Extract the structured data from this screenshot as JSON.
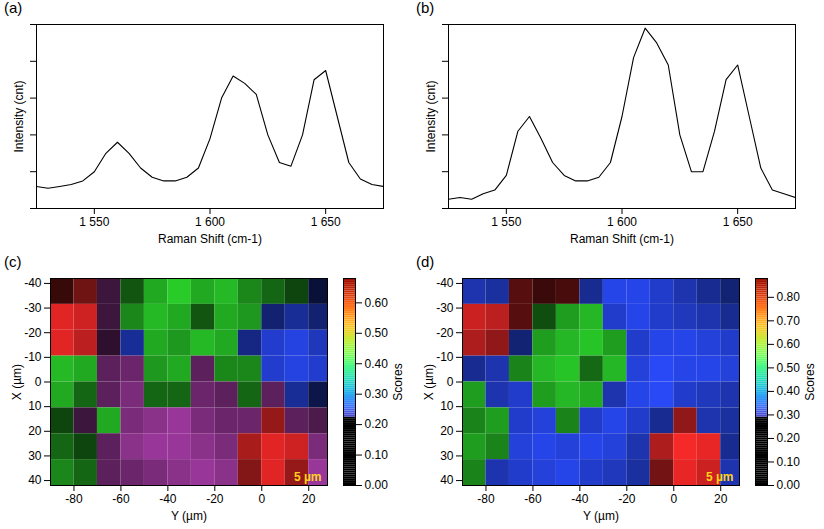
{
  "chart_data": [
    {
      "type": "line",
      "panel": "(a)",
      "x_label": "Raman Shift (cm-1)",
      "y_label": "Intensity (cnt)",
      "xlim": [
        1525,
        1675
      ],
      "xticks": [
        {
          "value": 1550,
          "label": "1 550"
        },
        {
          "value": 1600,
          "label": "1 600"
        },
        {
          "value": 1650,
          "label": "1 650"
        }
      ],
      "ylim": [
        0,
        1
      ],
      "yticks": [
        0,
        0.2,
        0.4,
        0.6,
        0.8,
        1
      ],
      "tick_labels": "x",
      "color": "#000000",
      "x": [
        1525,
        1530,
        1535,
        1540,
        1545,
        1550,
        1555,
        1560,
        1565,
        1570,
        1575,
        1580,
        1585,
        1590,
        1595,
        1600,
        1605,
        1610,
        1615,
        1620,
        1625,
        1630,
        1635,
        1640,
        1645,
        1650,
        1655,
        1660,
        1665,
        1670,
        1675
      ],
      "values": [
        0.12,
        0.11,
        0.12,
        0.13,
        0.15,
        0.2,
        0.3,
        0.36,
        0.3,
        0.22,
        0.17,
        0.15,
        0.15,
        0.17,
        0.22,
        0.38,
        0.6,
        0.72,
        0.68,
        0.62,
        0.4,
        0.25,
        0.23,
        0.4,
        0.7,
        0.75,
        0.5,
        0.25,
        0.16,
        0.13,
        0.12
      ]
    },
    {
      "type": "line",
      "panel": "(b)",
      "x_label": "Raman Shift (cm-1)",
      "y_label": "Intensity (cnt)",
      "xlim": [
        1525,
        1675
      ],
      "xticks": [
        {
          "value": 1550,
          "label": "1 550"
        },
        {
          "value": 1600,
          "label": "1 600"
        },
        {
          "value": 1650,
          "label": "1 650"
        }
      ],
      "ylim": [
        0,
        1
      ],
      "yticks": [
        0,
        0.2,
        0.4,
        0.6,
        0.8,
        1
      ],
      "tick_labels": "x",
      "color": "#000000",
      "x": [
        1525,
        1530,
        1535,
        1540,
        1545,
        1550,
        1555,
        1560,
        1565,
        1570,
        1575,
        1580,
        1585,
        1590,
        1595,
        1600,
        1605,
        1610,
        1615,
        1620,
        1625,
        1630,
        1635,
        1640,
        1645,
        1650,
        1655,
        1660,
        1665,
        1670,
        1675
      ],
      "values": [
        0.05,
        0.06,
        0.05,
        0.08,
        0.1,
        0.18,
        0.42,
        0.5,
        0.38,
        0.25,
        0.18,
        0.15,
        0.15,
        0.17,
        0.25,
        0.5,
        0.82,
        0.98,
        0.9,
        0.78,
        0.4,
        0.2,
        0.2,
        0.42,
        0.7,
        0.78,
        0.5,
        0.22,
        0.1,
        0.08,
        0.06
      ]
    },
    {
      "type": "heatmap",
      "panel": "(c)",
      "x_label": "Y (µm)",
      "y_label": "X (µm)",
      "colorbar_label": "Scores",
      "scale_bar": "5 µm",
      "xlim": [
        -90,
        28
      ],
      "xticks": [
        -80,
        -60,
        -40,
        -20,
        0,
        20
      ],
      "ylim": [
        -42,
        42
      ],
      "yticks": [
        -40,
        -30,
        -20,
        -10,
        0,
        10,
        20,
        30,
        40
      ],
      "colors": [
        "#ff2a2a",
        "#2ee62e",
        "#2a4cff",
        "#d04ad0"
      ],
      "x_centers": [
        -85,
        -75,
        -65,
        -55,
        -45,
        -35,
        -25,
        -15,
        -5,
        5,
        15,
        25
      ],
      "y_centers": [
        -36.75,
        -26.25,
        -15.75,
        -5.25,
        5.25,
        15.75,
        26.25,
        36.75
      ],
      "cell_width": 10,
      "cell_height": 10.5,
      "cells": [
        [
          [
            0,
            0.15
          ],
          [
            0,
            0.3
          ],
          [
            3,
            0.2
          ],
          [
            1,
            0.25
          ],
          [
            1,
            0.5
          ],
          [
            1,
            0.6
          ],
          [
            1,
            0.5
          ],
          [
            1,
            0.55
          ],
          [
            1,
            0.4
          ],
          [
            1,
            0.3
          ],
          [
            1,
            0.2
          ],
          [
            2,
            0.15
          ]
        ],
        [
          [
            0,
            0.6
          ],
          [
            0,
            0.55
          ],
          [
            3,
            0.2
          ],
          [
            1,
            0.4
          ],
          [
            1,
            0.55
          ],
          [
            1,
            0.5
          ],
          [
            1,
            0.25
          ],
          [
            1,
            0.5
          ],
          [
            1,
            0.45
          ],
          [
            2,
            0.3
          ],
          [
            2,
            0.4
          ],
          [
            2,
            0.3
          ]
        ],
        [
          [
            0,
            0.6
          ],
          [
            0,
            0.5
          ],
          [
            3,
            0.15
          ],
          [
            2,
            0.4
          ],
          [
            1,
            0.5
          ],
          [
            1,
            0.45
          ],
          [
            1,
            0.55
          ],
          [
            1,
            0.5
          ],
          [
            2,
            0.35
          ],
          [
            2,
            0.55
          ],
          [
            2,
            0.6
          ],
          [
            2,
            0.5
          ]
        ],
        [
          [
            1,
            0.55
          ],
          [
            1,
            0.5
          ],
          [
            3,
            0.3
          ],
          [
            3,
            0.35
          ],
          [
            1,
            0.45
          ],
          [
            1,
            0.5
          ],
          [
            3,
            0.3
          ],
          [
            1,
            0.4
          ],
          [
            1,
            0.4
          ],
          [
            2,
            0.55
          ],
          [
            2,
            0.6
          ],
          [
            2,
            0.55
          ]
        ],
        [
          [
            1,
            0.5
          ],
          [
            1,
            0.3
          ],
          [
            3,
            0.3
          ],
          [
            3,
            0.4
          ],
          [
            1,
            0.3
          ],
          [
            1,
            0.3
          ],
          [
            3,
            0.35
          ],
          [
            3,
            0.3
          ],
          [
            1,
            0.3
          ],
          [
            3,
            0.3
          ],
          [
            2,
            0.4
          ],
          [
            2,
            0.2
          ]
        ],
        [
          [
            1,
            0.2
          ],
          [
            3,
            0.2
          ],
          [
            1,
            0.5
          ],
          [
            3,
            0.4
          ],
          [
            3,
            0.45
          ],
          [
            3,
            0.5
          ],
          [
            3,
            0.4
          ],
          [
            3,
            0.35
          ],
          [
            3,
            0.35
          ],
          [
            0,
            0.4
          ],
          [
            3,
            0.3
          ],
          [
            3,
            0.25
          ]
        ],
        [
          [
            1,
            0.3
          ],
          [
            1,
            0.2
          ],
          [
            3,
            0.3
          ],
          [
            3,
            0.45
          ],
          [
            3,
            0.5
          ],
          [
            3,
            0.5
          ],
          [
            3,
            0.45
          ],
          [
            3,
            0.4
          ],
          [
            0,
            0.45
          ],
          [
            0,
            0.6
          ],
          [
            0,
            0.55
          ],
          [
            3,
            0.4
          ]
        ],
        [
          [
            1,
            0.4
          ],
          [
            1,
            0.3
          ],
          [
            3,
            0.3
          ],
          [
            3,
            0.35
          ],
          [
            3,
            0.4
          ],
          [
            3,
            0.45
          ],
          [
            3,
            0.5
          ],
          [
            3,
            0.45
          ],
          [
            0,
            0.35
          ],
          [
            0,
            0.6
          ],
          [
            0,
            0.4
          ],
          [
            3,
            0.5
          ]
        ]
      ],
      "colorbar_lim": [
        0,
        0.68
      ],
      "colorbar_ticks": [
        {
          "value": 0,
          "label": "0.00"
        },
        {
          "value": 0.1,
          "label": "0.10"
        },
        {
          "value": 0.2,
          "label": "0.20"
        },
        {
          "value": 0.3,
          "label": "0.30"
        },
        {
          "value": 0.4,
          "label": "0.40"
        },
        {
          "value": 0.5,
          "label": "0.50"
        },
        {
          "value": 0.6,
          "label": "0.60"
        }
      ]
    },
    {
      "type": "heatmap",
      "panel": "(d)",
      "x_label": "Y (µm)",
      "y_label": "X (µm)",
      "colorbar_label": "Scores",
      "scale_bar": "5 µm",
      "xlim": [
        -90,
        28
      ],
      "xticks": [
        -80,
        -60,
        -40,
        -20,
        0,
        20
      ],
      "ylim": [
        -42,
        42
      ],
      "yticks": [
        -40,
        -30,
        -20,
        -10,
        0,
        10,
        20,
        30,
        40
      ],
      "colors": [
        "#ff2a2a",
        "#2ee62e",
        "#2a4cff"
      ],
      "x_centers": [
        -85,
        -75,
        -65,
        -55,
        -45,
        -35,
        -25,
        -15,
        -5,
        5,
        15,
        25
      ],
      "y_centers": [
        -36.75,
        -26.25,
        -15.75,
        -5.25,
        5.25,
        15.75,
        26.25,
        36.75
      ],
      "cell_width": 10,
      "cell_height": 10.5,
      "cells": [
        [
          [
            2,
            0.6
          ],
          [
            2,
            0.55
          ],
          [
            0,
            0.3
          ],
          [
            0,
            0.2
          ],
          [
            0,
            0.25
          ],
          [
            2,
            0.5
          ],
          [
            2,
            0.8
          ],
          [
            2,
            0.8
          ],
          [
            2,
            0.7
          ],
          [
            2,
            0.6
          ],
          [
            2,
            0.5
          ],
          [
            2,
            0.4
          ]
        ],
        [
          [
            0,
            0.7
          ],
          [
            0,
            0.65
          ],
          [
            0,
            0.3
          ],
          [
            1,
            0.3
          ],
          [
            1,
            0.6
          ],
          [
            1,
            0.7
          ],
          [
            2,
            0.7
          ],
          [
            2,
            0.8
          ],
          [
            2,
            0.7
          ],
          [
            2,
            0.65
          ],
          [
            2,
            0.6
          ],
          [
            2,
            0.5
          ]
        ],
        [
          [
            0,
            0.6
          ],
          [
            0,
            0.5
          ],
          [
            2,
            0.4
          ],
          [
            1,
            0.6
          ],
          [
            1,
            0.7
          ],
          [
            1,
            0.75
          ],
          [
            1,
            0.6
          ],
          [
            2,
            0.7
          ],
          [
            2,
            0.8
          ],
          [
            2,
            0.8
          ],
          [
            2,
            0.75
          ],
          [
            2,
            0.7
          ]
        ],
        [
          [
            2,
            0.5
          ],
          [
            2,
            0.6
          ],
          [
            1,
            0.5
          ],
          [
            1,
            0.7
          ],
          [
            1,
            0.75
          ],
          [
            1,
            0.4
          ],
          [
            1,
            0.7
          ],
          [
            2,
            0.75
          ],
          [
            2,
            0.85
          ],
          [
            2,
            0.8
          ],
          [
            2,
            0.8
          ],
          [
            2,
            0.75
          ]
        ],
        [
          [
            1,
            0.6
          ],
          [
            2,
            0.6
          ],
          [
            2,
            0.7
          ],
          [
            1,
            0.6
          ],
          [
            1,
            0.7
          ],
          [
            1,
            0.65
          ],
          [
            2,
            0.6
          ],
          [
            2,
            0.8
          ],
          [
            2,
            0.85
          ],
          [
            2,
            0.7
          ],
          [
            2,
            0.65
          ],
          [
            2,
            0.6
          ]
        ],
        [
          [
            1,
            0.5
          ],
          [
            1,
            0.6
          ],
          [
            2,
            0.7
          ],
          [
            2,
            0.75
          ],
          [
            1,
            0.5
          ],
          [
            2,
            0.7
          ],
          [
            2,
            0.8
          ],
          [
            2,
            0.7
          ],
          [
            2,
            0.5
          ],
          [
            0,
            0.5
          ],
          [
            2,
            0.6
          ],
          [
            2,
            0.55
          ]
        ],
        [
          [
            1,
            0.6
          ],
          [
            1,
            0.5
          ],
          [
            2,
            0.75
          ],
          [
            2,
            0.8
          ],
          [
            2,
            0.75
          ],
          [
            2,
            0.8
          ],
          [
            2,
            0.75
          ],
          [
            2,
            0.6
          ],
          [
            0,
            0.6
          ],
          [
            0,
            0.85
          ],
          [
            0,
            0.8
          ],
          [
            2,
            0.5
          ]
        ],
        [
          [
            1,
            0.5
          ],
          [
            2,
            0.6
          ],
          [
            2,
            0.7
          ],
          [
            2,
            0.75
          ],
          [
            2,
            0.8
          ],
          [
            2,
            0.7
          ],
          [
            2,
            0.65
          ],
          [
            2,
            0.55
          ],
          [
            0,
            0.4
          ],
          [
            0,
            0.8
          ],
          [
            0,
            0.7
          ],
          [
            2,
            0.6
          ]
        ]
      ],
      "colorbar_lim": [
        0,
        0.88
      ],
      "colorbar_ticks": [
        {
          "value": 0,
          "label": "0.00"
        },
        {
          "value": 0.1,
          "label": "0.10"
        },
        {
          "value": 0.2,
          "label": "0.20"
        },
        {
          "value": 0.3,
          "label": "0.30"
        },
        {
          "value": 0.4,
          "label": "0.40"
        },
        {
          "value": 0.5,
          "label": "0.50"
        },
        {
          "value": 0.6,
          "label": "0.60"
        },
        {
          "value": 0.7,
          "label": "0.70"
        },
        {
          "value": 0.8,
          "label": "0.80"
        }
      ]
    }
  ]
}
